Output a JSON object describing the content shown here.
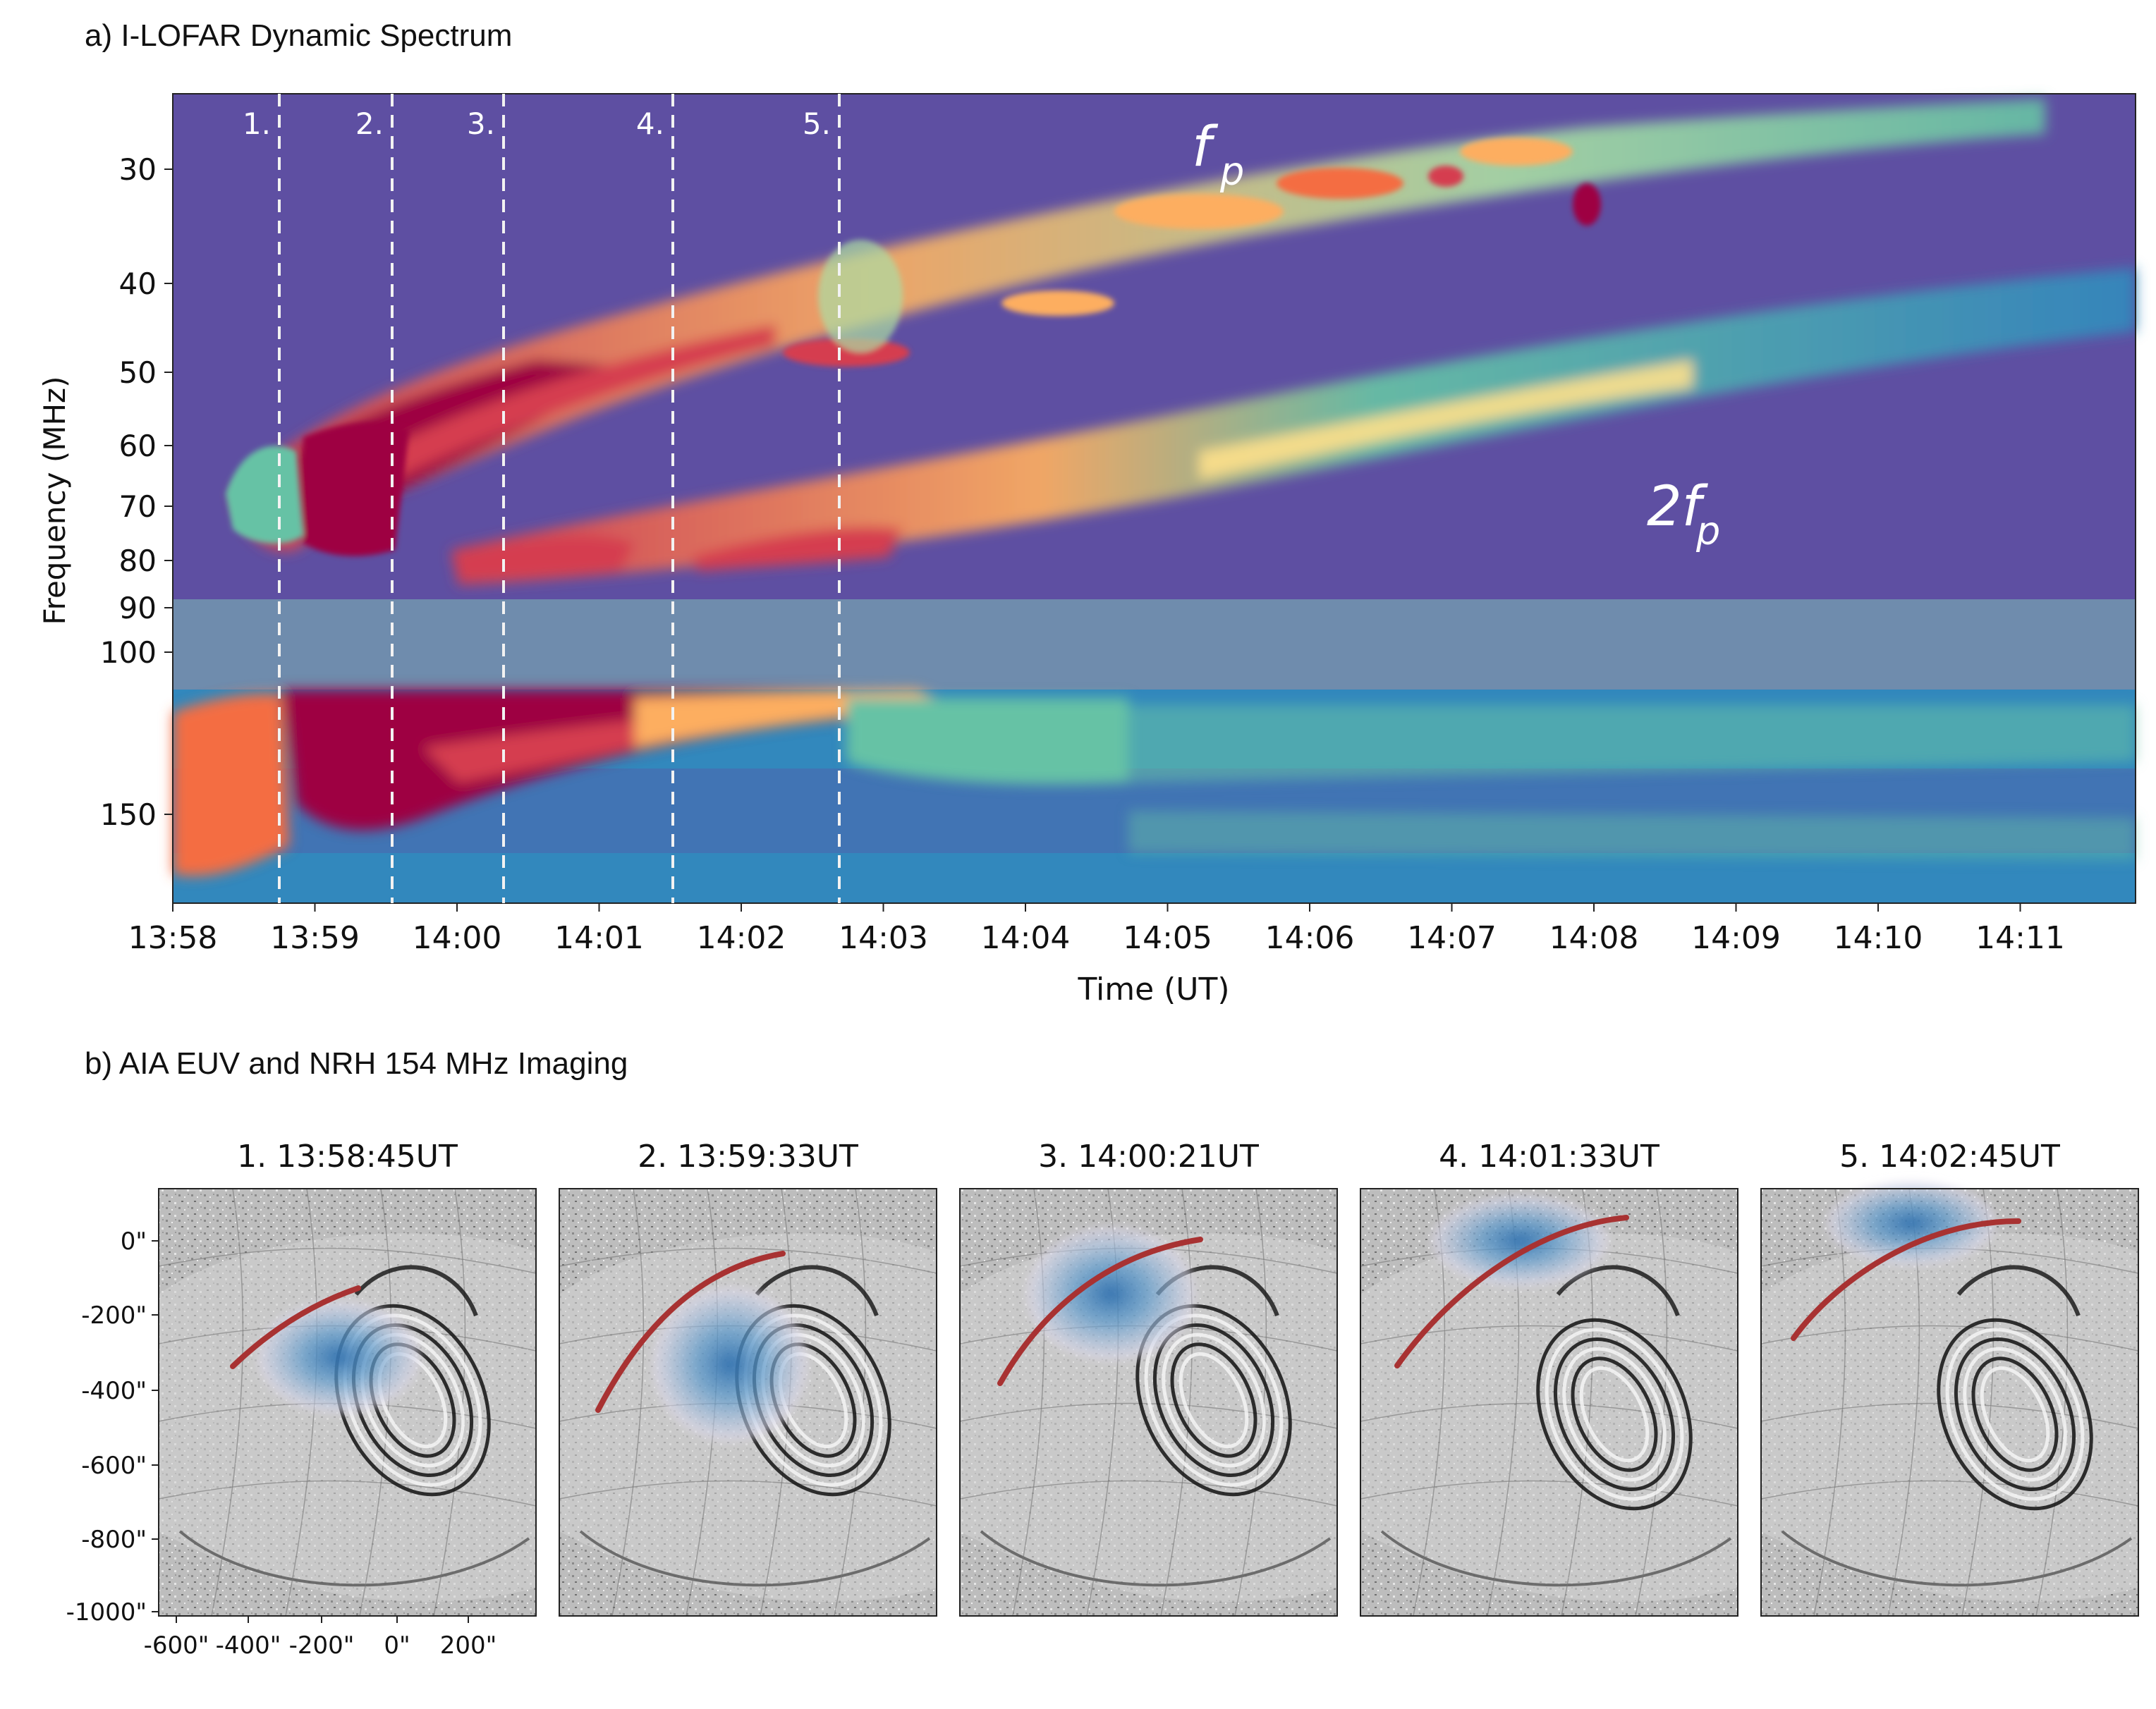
{
  "panel_a": {
    "title": "a) I-LOFAR Dynamic Spectrum",
    "ylabel": "Frequency (MHz)",
    "xlabel": "Time (UT)",
    "y_ticks": [
      "30",
      "40",
      "50",
      "60",
      "70",
      "80",
      "90",
      "100",
      "150"
    ],
    "x_ticks": [
      "13:58",
      "13:59",
      "14:00",
      "14:01",
      "14:02",
      "14:03",
      "14:04",
      "14:05",
      "14:06",
      "14:07",
      "14:08",
      "14:09",
      "14:10",
      "14:11"
    ],
    "markers": [
      "1.",
      "2.",
      "3.",
      "4.",
      "5."
    ],
    "annotation_fp": "f",
    "annotation_fp_sub": "p",
    "annotation_2fp": "2f",
    "annotation_2fp_sub": "p",
    "colors": {
      "background": "#5e4fa2",
      "gap_band": "#6f8cad",
      "high": "#9e0142",
      "mid": "#fdae61",
      "low": "#66c2a5"
    }
  },
  "panel_b": {
    "title": "b) AIA EUV and NRH 154 MHz Imaging",
    "frames": [
      {
        "label": "1.  13:58:45UT"
      },
      {
        "label": "2.  13:59:33UT"
      },
      {
        "label": "3.  14:00:21UT"
      },
      {
        "label": "4.  14:01:33UT"
      },
      {
        "label": "5.  14:02:45UT"
      }
    ],
    "y_ticks": [
      "0\"",
      "-200\"",
      "-400\"",
      "-600\"",
      "-800\"",
      "-1000\""
    ],
    "x_ticks": [
      "-600\"",
      "-400\"",
      "-200\"",
      "0\"",
      "200\""
    ],
    "colors": {
      "track": "#a83232",
      "source": "#3f7fbf"
    }
  }
}
